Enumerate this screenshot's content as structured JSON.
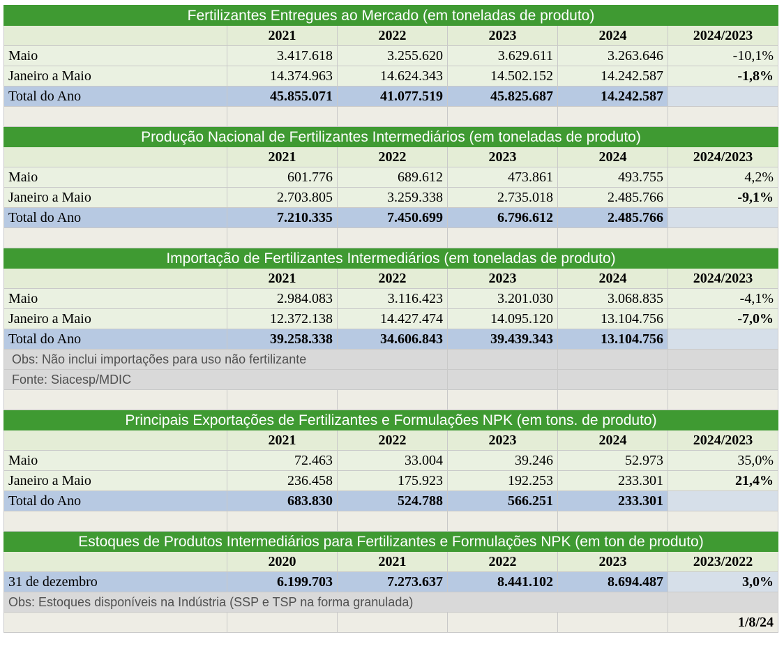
{
  "sections": [
    {
      "title": "Fertilizantes Entregues ao Mercado (em toneladas de produto)",
      "headers": [
        "2021",
        "2022",
        "2023",
        "2024",
        "2024/2023"
      ],
      "rows": [
        {
          "label": "Maio",
          "values": [
            "3.417.618",
            "3.255.620",
            "3.629.611",
            "3.263.646"
          ],
          "pct": "-10,1%"
        },
        {
          "label": "Janeiro a Maio",
          "values": [
            "14.374.963",
            "14.624.343",
            "14.502.152",
            "14.242.587"
          ],
          "pct": "-1,8%"
        }
      ],
      "total": {
        "label": "Total do Ano",
        "values": [
          "45.855.071",
          "41.077.519",
          "45.825.687",
          "14.242.587"
        ]
      }
    },
    {
      "title": "Produção Nacional de Fertilizantes Intermediários (em toneladas de produto)",
      "headers": [
        "2021",
        "2022",
        "2023",
        "2024",
        "2024/2023"
      ],
      "rows": [
        {
          "label": "Maio",
          "values": [
            "601.776",
            "689.612",
            "473.861",
            "493.755"
          ],
          "pct": "4,2%"
        },
        {
          "label": "Janeiro a Maio",
          "values": [
            "2.703.805",
            "3.259.338",
            "2.735.018",
            "2.485.766"
          ],
          "pct": "-9,1%"
        }
      ],
      "total": {
        "label": "Total do Ano",
        "values": [
          "7.210.335",
          "7.450.699",
          "6.796.612",
          "2.485.766"
        ]
      }
    },
    {
      "title": "Importação de Fertilizantes Intermediários (em toneladas de produto)",
      "headers": [
        "2021",
        "2022",
        "2023",
        "2024",
        "2024/2023"
      ],
      "rows": [
        {
          "label": "Maio",
          "values": [
            "2.984.083",
            "3.116.423",
            "3.201.030",
            "3.068.835"
          ],
          "pct": "-4,1%"
        },
        {
          "label": "Janeiro a Maio",
          "values": [
            "12.372.138",
            "14.427.474",
            "14.095.120",
            "13.104.756"
          ],
          "pct": "-7,0%"
        }
      ],
      "total": {
        "label": "Total do Ano",
        "values": [
          "39.258.338",
          "34.606.843",
          "39.439.343",
          "13.104.756"
        ]
      },
      "notes": [
        "Obs: Não inclui importações para uso não fertilizante",
        "Fonte: Siacesp/MDIC"
      ]
    },
    {
      "title": "Principais Exportações de Fertilizantes e Formulações NPK (em tons. de produto)",
      "headers": [
        "2021",
        "2022",
        "2023",
        "2024",
        "2024/2023"
      ],
      "rows": [
        {
          "label": "Maio",
          "values": [
            "72.463",
            "33.004",
            "39.246",
            "52.973"
          ],
          "pct": "35,0%"
        },
        {
          "label": "Janeiro a Maio",
          "values": [
            "236.458",
            "175.923",
            "192.253",
            "233.301"
          ],
          "pct": "21,4%"
        }
      ],
      "total": {
        "label": "Total do Ano",
        "values": [
          "683.830",
          "524.788",
          "566.251",
          "233.301"
        ]
      }
    },
    {
      "title": "Estoques de Produtos Intermediários para Fertilizantes e Formulações NPK (em ton de produto)",
      "headers": [
        "2020",
        "2021",
        "2022",
        "2023",
        "2023/2022"
      ],
      "row": {
        "label": "31 de dezembro",
        "values": [
          "6.199.703",
          "7.273.637",
          "8.441.102",
          "8.694.487"
        ],
        "pct": "3,0%"
      },
      "note": "Obs: Estoques disponíveis na Indústria (SSP e TSP na forma granulada)"
    }
  ],
  "date": "1/8/24",
  "colors": {
    "title_bg": "#3f9a32",
    "header_bg": "#e4edd6",
    "row_bg": "#eaf1e1",
    "total_bg": "#b7c9e2",
    "blank_bg": "#eeede5",
    "note_bg": "#d9d9d9"
  }
}
